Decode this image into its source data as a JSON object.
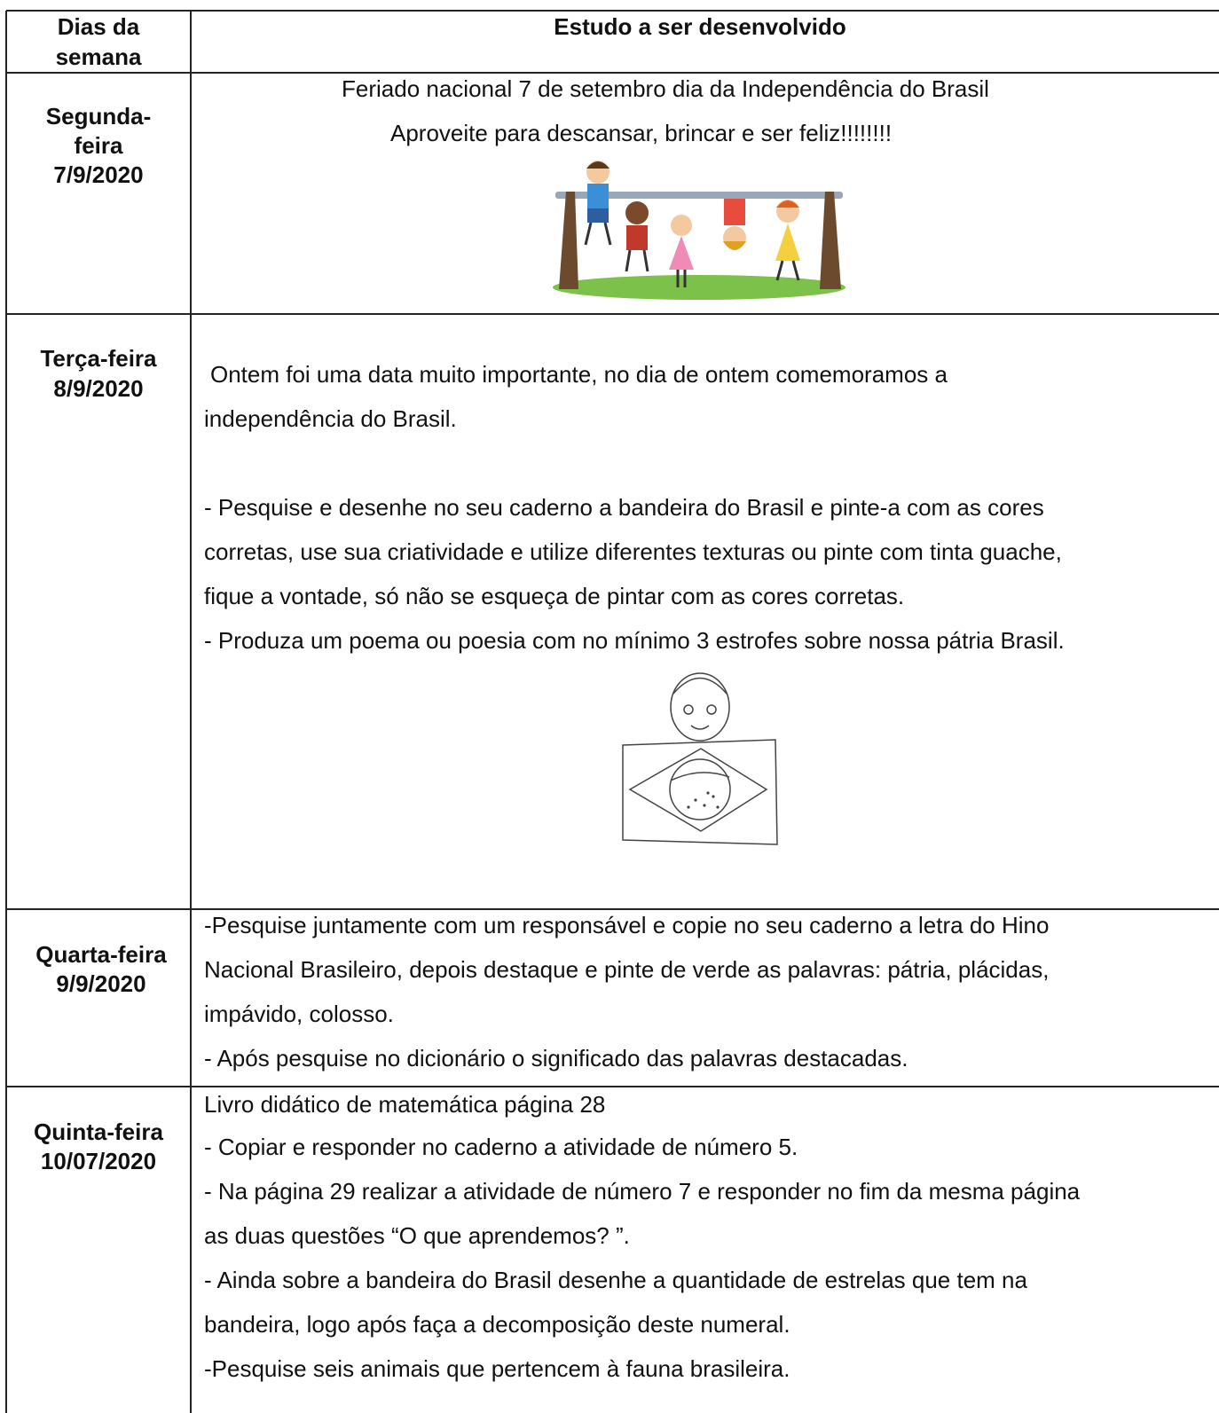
{
  "table": {
    "header": {
      "day_column": [
        "Dias da",
        "semana"
      ],
      "content_column": "Estudo a ser desenvolvido"
    },
    "rows": [
      {
        "day": [
          "Segunda-",
          "feira",
          "7/9/2020"
        ],
        "content": [
          "Feriado nacional 7 de setembro dia da Independência do Brasil",
          "Aproveite para descansar, brincar e ser feliz!!!!!!!!"
        ]
      },
      {
        "day": [
          "Terça-feira",
          "8/9/2020"
        ],
        "content": [
          "Ontem foi uma data muito importante, no dia de ontem comemoramos a",
          "independência do Brasil.",
          "- Pesquise e desenhe no seu caderno a bandeira do Brasil e pinte-a com as cores",
          "corretas, use sua criatividade e utilize diferentes texturas ou pinte com tinta guache,",
          "fique a vontade, só não se esqueça de pintar com as cores corretas.",
          "- Produza um poema ou poesia com no mínimo 3 estrofes sobre nossa pátria Brasil."
        ]
      },
      {
        "day": [
          "Quarta-feira",
          "9/9/2020"
        ],
        "content": [
          "-Pesquise juntamente com um responsável e copie no seu caderno a letra do Hino",
          "Nacional Brasileiro, depois destaque e pinte de verde as palavras: pátria, plácidas,",
          "impávido, colosso.",
          "- Após pesquise no dicionário o significado das palavras destacadas."
        ]
      },
      {
        "day": [
          "Quinta-feira",
          "10/07/2020"
        ],
        "content": [
          "Livro didático de matemática página 28",
          "- Copiar e responder no caderno a atividade de número 5.",
          "- Na página 29 realizar a atividade de número 7 e responder no fim da mesma página",
          "as duas questões “O que aprendemos? ”.",
          "- Ainda sobre a bandeira do Brasil desenhe a quantidade de estrelas que tem na",
          "bandeira, logo após faça a decomposição deste numeral.",
          "-Pesquise seis animais que pertencem à fauna brasileira."
        ]
      }
    ]
  }
}
